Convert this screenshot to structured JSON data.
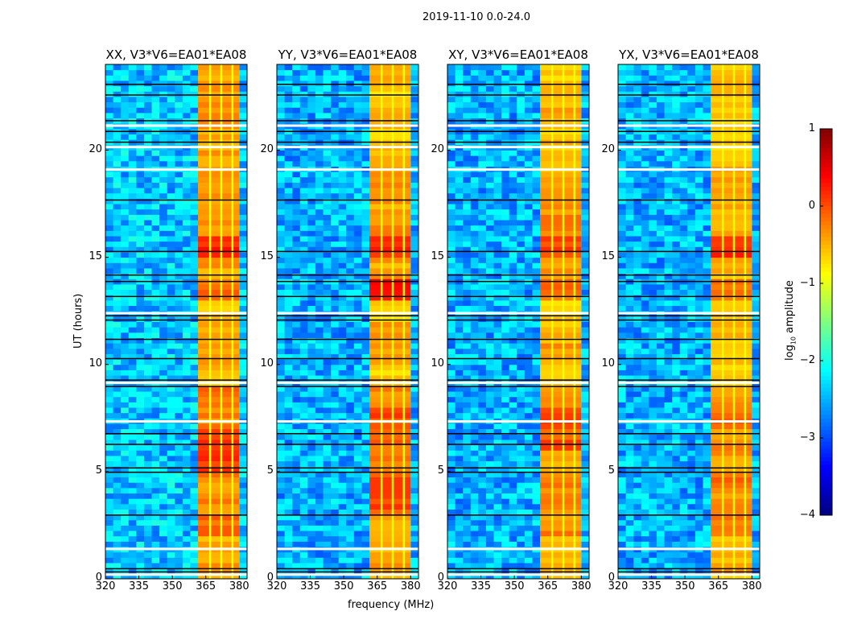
{
  "chart_data": {
    "type": "heatmap",
    "title": "2019-11-10 0.0-24.0",
    "xlabel": "frequency (MHz)",
    "ylabel": "UT (hours)",
    "xlim": [
      320,
      383.5
    ],
    "ylim": [
      0,
      24
    ],
    "xticks": [
      "320",
      "335",
      "350",
      "365",
      "380"
    ],
    "xtick_values": [
      320,
      335,
      350,
      365,
      380
    ],
    "yticks": [
      "0",
      "5",
      "10",
      "15",
      "20"
    ],
    "ytick_values": [
      0,
      5,
      10,
      15,
      20
    ],
    "colorbar": {
      "label": "log10 amplitude",
      "label_main": "log",
      "label_sub": "10",
      "label_rest": " amplitude",
      "ticks": [
        "1",
        "0",
        "−1",
        "−2",
        "−3",
        "−4"
      ],
      "tick_values": [
        1,
        0,
        -1,
        -2,
        -3,
        -4
      ],
      "range": [
        -4,
        1
      ],
      "colormap": "jet"
    },
    "rfi_band": [
      361.5,
      380
    ],
    "channel_gaps": [
      366.5,
      371.5,
      376.5
    ],
    "panels": [
      {
        "title": "XX, V3*V6=EA01*EA08",
        "background": -2.4,
        "band_hourly": [
          -0.4,
          -0.5,
          -0.2,
          -0.3,
          -0.3,
          0.1,
          0.2,
          -0.3,
          -0.1,
          -0.5,
          -0.4,
          -0.4,
          -0.6,
          -0.1,
          -0.4,
          0.2,
          -0.3,
          -0.4,
          -0.3,
          -0.4,
          -0.5,
          -0.3,
          -0.4,
          -0.5
        ]
      },
      {
        "title": "YY, V3*V6=EA01*EA08",
        "background": -2.5,
        "band_hourly": [
          -0.4,
          -0.5,
          -0.4,
          0.0,
          0.0,
          -0.3,
          -0.1,
          0.0,
          -0.3,
          -0.6,
          -0.4,
          -0.4,
          -0.6,
          0.4,
          -0.4,
          0.2,
          -0.3,
          -0.4,
          -0.3,
          -0.5,
          -0.6,
          -0.5,
          -0.6,
          -0.5
        ]
      },
      {
        "title": "XY, V3*V6=EA01*EA08",
        "background": -2.5,
        "band_hourly": [
          -0.4,
          -0.5,
          -0.3,
          -0.3,
          -0.2,
          -0.4,
          0.0,
          0.0,
          -0.3,
          -0.5,
          -0.4,
          -0.5,
          -0.6,
          -0.1,
          -0.4,
          0.1,
          -0.3,
          -0.4,
          -0.4,
          -0.5,
          -0.6,
          -0.5,
          -0.6,
          -0.6
        ]
      },
      {
        "title": "YX, V3*V6=EA01*EA08",
        "background": -2.5,
        "band_hourly": [
          -0.5,
          -0.5,
          -0.3,
          -0.3,
          -0.2,
          -0.4,
          -0.3,
          -0.2,
          -0.4,
          -0.6,
          -0.5,
          -0.5,
          -0.6,
          -0.2,
          -0.5,
          0.1,
          -0.4,
          -0.5,
          -0.4,
          -0.5,
          -0.6,
          -0.6,
          -0.6,
          -0.6
        ]
      }
    ],
    "flagged_white": [
      0.25,
      1.45,
      7.4,
      9.2,
      12.45,
      19.15,
      20.2,
      21.2
    ],
    "flagged_black": [
      0.35,
      0.5,
      3.0,
      5.0,
      5.2,
      6.3,
      6.8,
      9.0,
      9.3,
      10.3,
      11.2,
      12.1,
      12.3,
      13.2,
      13.9,
      14.2,
      15.3,
      17.7,
      20.4,
      20.9,
      21.4,
      22.6,
      23.1
    ]
  }
}
